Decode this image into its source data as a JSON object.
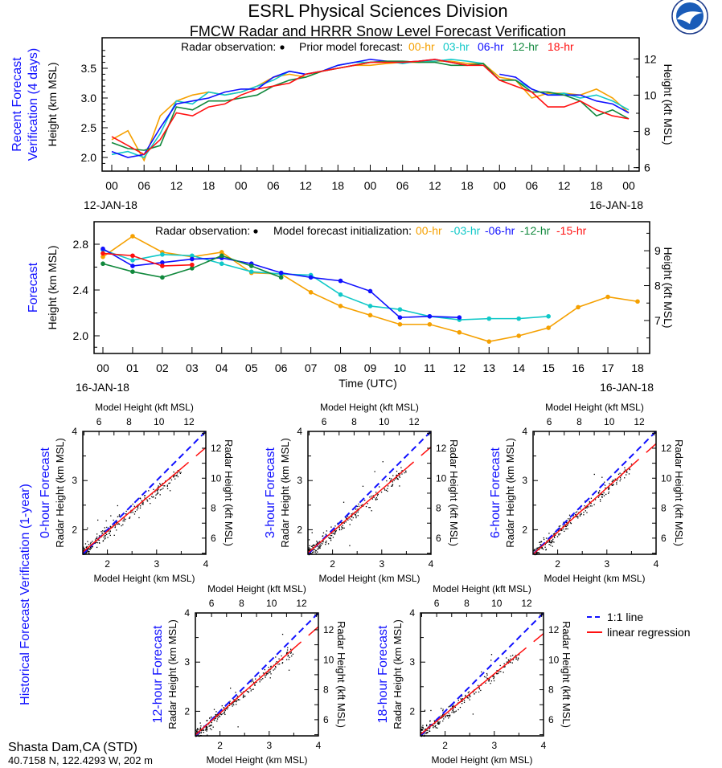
{
  "header": {
    "title": "ESRL Physical Sciences Division",
    "subtitle": "FMCW Radar and HRRR Snow Level Forecast Verification",
    "logo_text": "NOAA"
  },
  "colors": {
    "00": "#f5a000",
    "03": "#10c8c8",
    "06": "#1010ff",
    "12": "#10883c",
    "15": "#ff1010",
    "18": "#ff1010",
    "obs": "#000000",
    "label": "#1010ff"
  },
  "station": {
    "name": "Shasta Dam,CA (STD)",
    "coords": "40.7158 N, 122.4293 W, 202 m"
  },
  "chart_data": [
    {
      "type": "line",
      "id": "recent",
      "panel_label": [
        "Recent Forecast",
        "Verification (4 days)"
      ],
      "ylabel": "Height (km MSL)",
      "y2label": "Height (kft MSL)",
      "legend_obs": "Radar observation:",
      "legend_model": "Prior model forecast:",
      "legend_labels": [
        "00-hr",
        "03-hr",
        "06-hr",
        "12-hr",
        "18-hr"
      ],
      "ylim": [
        1.8,
        3.9
      ],
      "yticks": [
        "2.0",
        "2.5",
        "3.0",
        "3.5"
      ],
      "y2ticks": [
        "6",
        "8",
        "10",
        "12"
      ],
      "xticks": [
        "00",
        "06",
        "12",
        "18",
        "00",
        "06",
        "12",
        "18",
        "00",
        "06",
        "12",
        "18",
        "00",
        "06",
        "12",
        "18",
        "00"
      ],
      "date_start": "12-JAN-18",
      "date_end": "16-JAN-18",
      "x_hours_step": 3,
      "series": [
        {
          "name": "00-hr",
          "color_key": "00",
          "values": [
            2.3,
            2.45,
            1.95,
            2.7,
            2.95,
            3.05,
            3.1,
            3.05,
            3.1,
            3.2,
            3.35,
            3.4,
            3.35,
            3.45,
            3.5,
            3.55,
            3.55,
            3.58,
            3.6,
            3.6,
            3.62,
            3.62,
            3.58,
            3.58,
            3.35,
            3.3,
            3.0,
            3.08,
            3.08,
            3.05,
            3.15,
            3.0,
            2.75
          ]
        },
        {
          "name": "03-hr",
          "color_key": "03",
          "values": [
            2.05,
            2.1,
            2.0,
            2.4,
            2.95,
            2.9,
            3.1,
            3.05,
            3.1,
            3.2,
            3.3,
            3.45,
            3.4,
            3.45,
            3.55,
            3.6,
            3.6,
            3.62,
            3.58,
            3.62,
            3.62,
            3.65,
            3.62,
            3.58,
            null,
            3.3,
            3.15,
            3.05,
            3.08,
            3.0,
            3.05,
            2.95,
            2.8
          ]
        },
        {
          "name": "06-hr",
          "color_key": "06",
          "values": [
            2.1,
            2.0,
            2.05,
            2.5,
            2.9,
            2.95,
            3.0,
            3.1,
            3.15,
            3.15,
            3.35,
            3.45,
            3.4,
            3.45,
            3.55,
            3.6,
            3.65,
            3.62,
            3.6,
            3.62,
            3.65,
            3.6,
            3.55,
            null,
            3.4,
            3.35,
            3.15,
            3.05,
            3.05,
            3.05,
            2.95,
            2.9,
            2.75
          ]
        },
        {
          "name": "12-hr",
          "color_key": "12",
          "values": [
            2.25,
            2.15,
            2.12,
            2.2,
            2.85,
            2.8,
            2.95,
            2.95,
            3.0,
            3.05,
            3.2,
            3.3,
            3.35,
            3.45,
            3.5,
            3.55,
            3.6,
            3.62,
            3.62,
            3.6,
            3.6,
            3.55,
            3.55,
            3.58,
            3.3,
            3.3,
            3.1,
            3.1,
            3.05,
            2.95,
            2.7,
            2.8,
            2.65
          ]
        },
        {
          "name": "18-hr",
          "color_key": "18",
          "values": [
            2.35,
            2.2,
            2.05,
            2.3,
            2.75,
            2.7,
            2.85,
            2.9,
            3.05,
            3.15,
            3.2,
            3.25,
            3.4,
            3.45,
            3.5,
            3.55,
            3.6,
            3.6,
            3.6,
            3.62,
            3.65,
            3.6,
            3.55,
            3.55,
            3.3,
            3.2,
            3.1,
            2.85,
            2.85,
            2.95,
            2.8,
            2.7,
            2.65
          ]
        }
      ]
    },
    {
      "type": "line",
      "id": "forecast",
      "panel_label": [
        "Forecast"
      ],
      "ylabel": "Height (km MSL)",
      "y2label": "Height (kft MSL)",
      "xlabel": "Time (UTC)",
      "legend_obs": "Radar observation:",
      "legend_model": "Model forecast initialization:",
      "legend_labels": [
        "00-hr",
        "-03-hr",
        "-06-hr",
        "-12-hr",
        "-15-hr"
      ],
      "ylim": [
        1.9,
        3.0
      ],
      "yticks": [
        "2.0",
        "2.4",
        "2.8"
      ],
      "y2ticks": [
        "7",
        "8",
        "9"
      ],
      "xticks": [
        "00",
        "01",
        "02",
        "03",
        "04",
        "05",
        "06",
        "07",
        "08",
        "09",
        "10",
        "11",
        "12",
        "13",
        "14",
        "15",
        "16",
        "17",
        "18"
      ],
      "date_start": "16-JAN-18",
      "date_end": "16-JAN-18",
      "series": [
        {
          "name": "00-hr",
          "color_key": "00",
          "values": [
            2.69,
            2.87,
            2.73,
            2.69,
            2.73,
            2.55,
            2.54,
            2.38,
            2.26,
            2.18,
            2.1,
            2.1,
            2.03,
            1.95,
            2.0,
            2.07,
            2.25,
            2.34,
            2.3
          ]
        },
        {
          "name": "-03-hr",
          "color_key": "03",
          "values": [
            2.75,
            2.66,
            2.71,
            2.7,
            2.63,
            2.56,
            2.54,
            2.53,
            2.36,
            2.26,
            2.23,
            2.17,
            2.14,
            2.15,
            2.15,
            2.17
          ]
        },
        {
          "name": "-06-hr",
          "color_key": "06",
          "values": [
            2.76,
            2.61,
            2.64,
            2.67,
            2.68,
            2.63,
            2.55,
            2.51,
            2.48,
            2.39,
            2.16,
            2.17,
            2.16
          ]
        },
        {
          "name": "-12-hr",
          "color_key": "12",
          "values": [
            2.63,
            2.56,
            2.51,
            2.59,
            2.7,
            2.61,
            2.51
          ]
        },
        {
          "name": "-15-hr",
          "color_key": "15",
          "values": [
            2.72,
            2.7,
            2.61,
            2.62
          ]
        }
      ]
    },
    {
      "type": "scatter",
      "id": "historical",
      "group_label": "Historical Forecast Verification (1-year)",
      "xlabel": "Model Height (km MSL)",
      "x2label": "Model Height (kft MSL)",
      "ylabel": "Radar Height (km MSL)",
      "y2label": "Radar Height (kft MSL)",
      "xlim": [
        1.5,
        4
      ],
      "ylim": [
        1.5,
        4
      ],
      "ticks": [
        "2",
        "3",
        "4"
      ],
      "kft_ticks": [
        "6",
        "8",
        "10",
        "12"
      ],
      "legend": [
        "1:1 line",
        "linear regression"
      ],
      "panels": [
        {
          "title": "0-hour Forecast",
          "slope": 0.85,
          "intercept": 0.27,
          "n": 260,
          "seed": 11
        },
        {
          "title": "3-hour Forecast",
          "slope": 0.86,
          "intercept": 0.24,
          "n": 260,
          "seed": 23
        },
        {
          "title": "6-hour Forecast",
          "slope": 0.9,
          "intercept": 0.15,
          "n": 260,
          "seed": 37
        },
        {
          "title": "12-hour Forecast",
          "slope": 0.88,
          "intercept": 0.2,
          "n": 260,
          "seed": 41
        },
        {
          "title": "18-hour Forecast",
          "slope": 0.82,
          "intercept": 0.3,
          "n": 260,
          "seed": 53
        }
      ]
    }
  ]
}
